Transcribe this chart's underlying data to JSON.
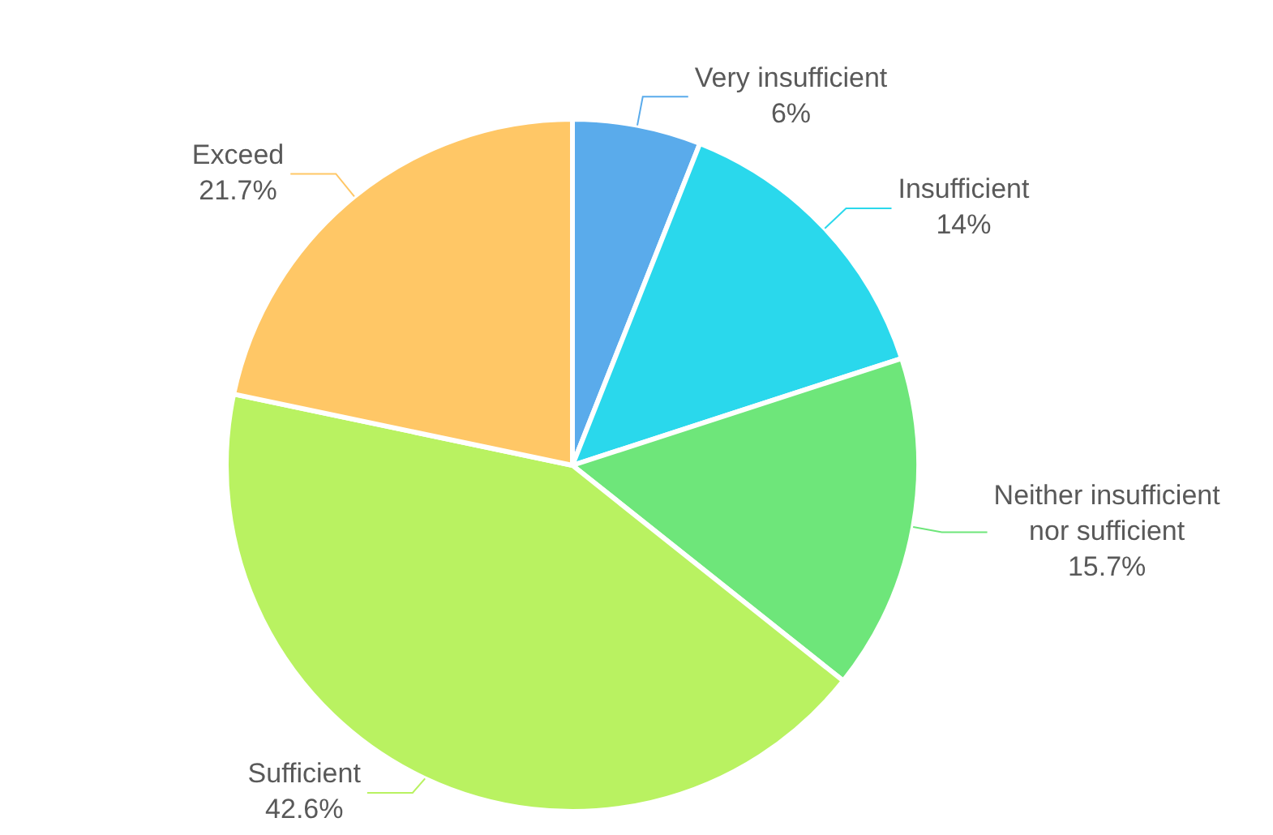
{
  "chart_data": {
    "type": "pie",
    "categories": [
      "Very insufficient",
      "Insufficient",
      "Neither insufficient nor sufficient",
      "Sufficient",
      "Exceed"
    ],
    "values": [
      6,
      14,
      15.7,
      42.6,
      21.7
    ],
    "value_labels": [
      "6%",
      "14%",
      "15.7%",
      "42.6%",
      "21.7%"
    ],
    "colors": [
      "#5aabeb",
      "#2ad8ec",
      "#6ee67a",
      "#b9f261",
      "#ffc766"
    ],
    "legend": false
  }
}
